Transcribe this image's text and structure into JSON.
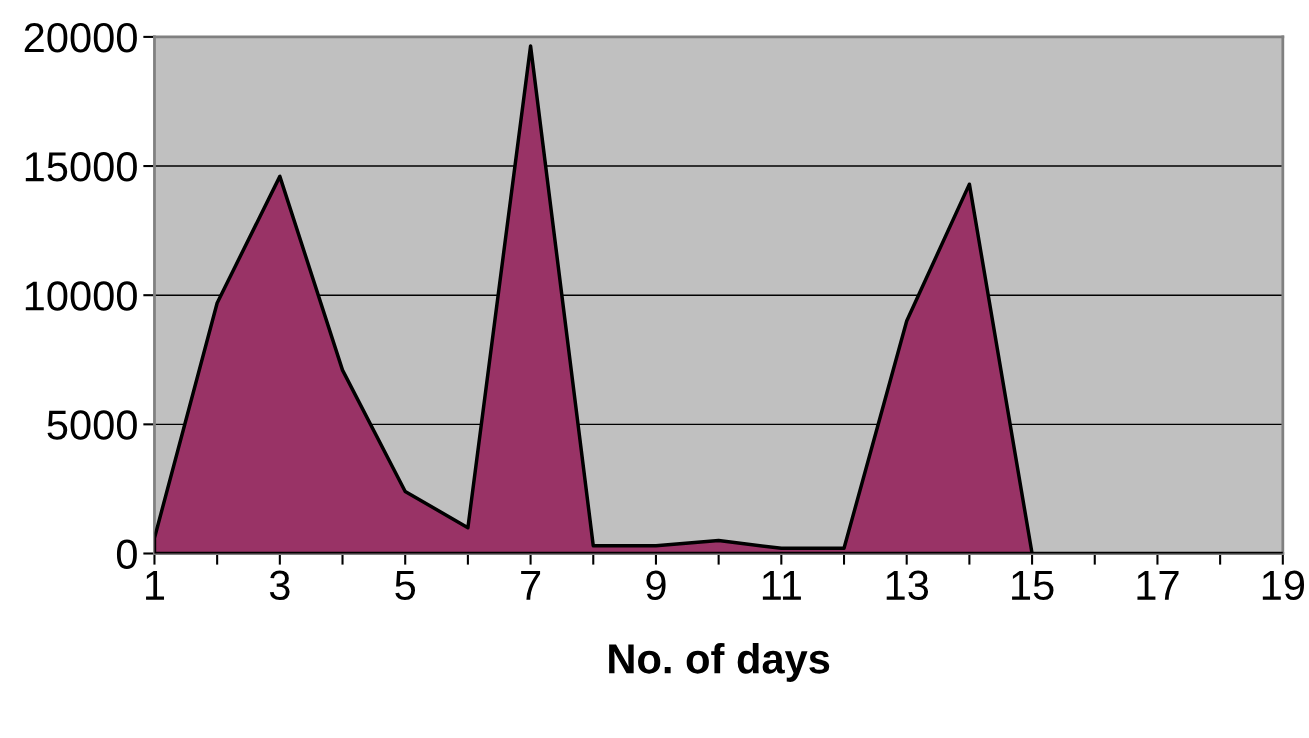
{
  "chart_data": {
    "type": "area",
    "xlabel": "No. of days",
    "x": [
      1,
      2,
      3,
      4,
      5,
      6,
      7,
      8,
      9,
      10,
      11,
      12,
      13,
      14,
      15,
      16,
      17,
      18,
      19
    ],
    "series": [
      {
        "color": "#993366",
        "values": [
          600,
          9700,
          14600,
          7100,
          2400,
          1000,
          19650,
          300,
          300,
          500,
          200,
          200,
          9000,
          14300,
          0,
          0,
          0,
          0,
          0
        ]
      }
    ],
    "xlim": [
      1,
      19
    ],
    "xticks": [
      1,
      {
        "value": 2,
        "label": null
      },
      3,
      {
        "value": 4,
        "label": null
      },
      5,
      {
        "value": 6,
        "label": null
      },
      7,
      {
        "value": 8,
        "label": null
      },
      9,
      {
        "value": 10,
        "label": null
      },
      11,
      {
        "value": 12,
        "label": null
      },
      13,
      {
        "value": 14,
        "label": null
      },
      15,
      {
        "value": 16,
        "label": null
      },
      17,
      {
        "value": 18,
        "label": null
      },
      19
    ],
    "ylim": [
      0,
      20000
    ],
    "yticks": [
      0,
      5000,
      10000,
      15000,
      20000
    ],
    "grid": "y",
    "legend": false
  }
}
